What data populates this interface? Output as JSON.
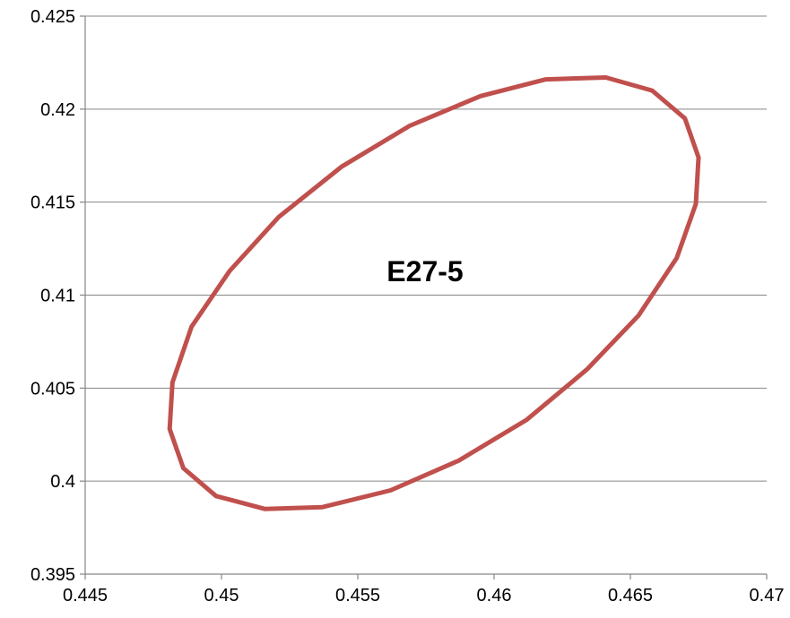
{
  "chart_data": {
    "type": "line",
    "title": "",
    "xlabel": "",
    "ylabel": "",
    "xlim": [
      0.445,
      0.47
    ],
    "ylim": [
      0.395,
      0.425
    ],
    "x_ticks": [
      0.445,
      0.45,
      0.455,
      0.46,
      0.465,
      0.47
    ],
    "x_tick_labels": [
      "0.445",
      "0.45",
      "0.455",
      "0.46",
      "0.465",
      "0.47"
    ],
    "y_ticks": [
      0.395,
      0.4,
      0.405,
      0.41,
      0.415,
      0.42,
      0.425
    ],
    "y_tick_labels": [
      "0.395",
      "0.4",
      "0.405",
      "0.41",
      "0.415",
      "0.42",
      "0.425"
    ],
    "grid": "horizontal",
    "legend": "none",
    "annotation": "E27-5",
    "series": [
      {
        "color": "#c0504d",
        "x": [
          0.4641,
          0.4658,
          0.467,
          0.4675,
          0.4674,
          0.4667,
          0.4653,
          0.4634,
          0.4612,
          0.4587,
          0.4562,
          0.4537,
          0.4516,
          0.4498,
          0.4486,
          0.4481,
          0.4482,
          0.4489,
          0.4503,
          0.4521,
          0.4544,
          0.4569,
          0.4595,
          0.4619,
          0.4641
        ],
        "y": [
          0.4217,
          0.421,
          0.4195,
          0.4174,
          0.4149,
          0.412,
          0.4089,
          0.406,
          0.4033,
          0.4011,
          0.3995,
          0.3986,
          0.3985,
          0.3992,
          0.4007,
          0.4028,
          0.4053,
          0.4083,
          0.4113,
          0.4142,
          0.4169,
          0.4191,
          0.4207,
          0.4216,
          0.4217
        ]
      }
    ]
  }
}
